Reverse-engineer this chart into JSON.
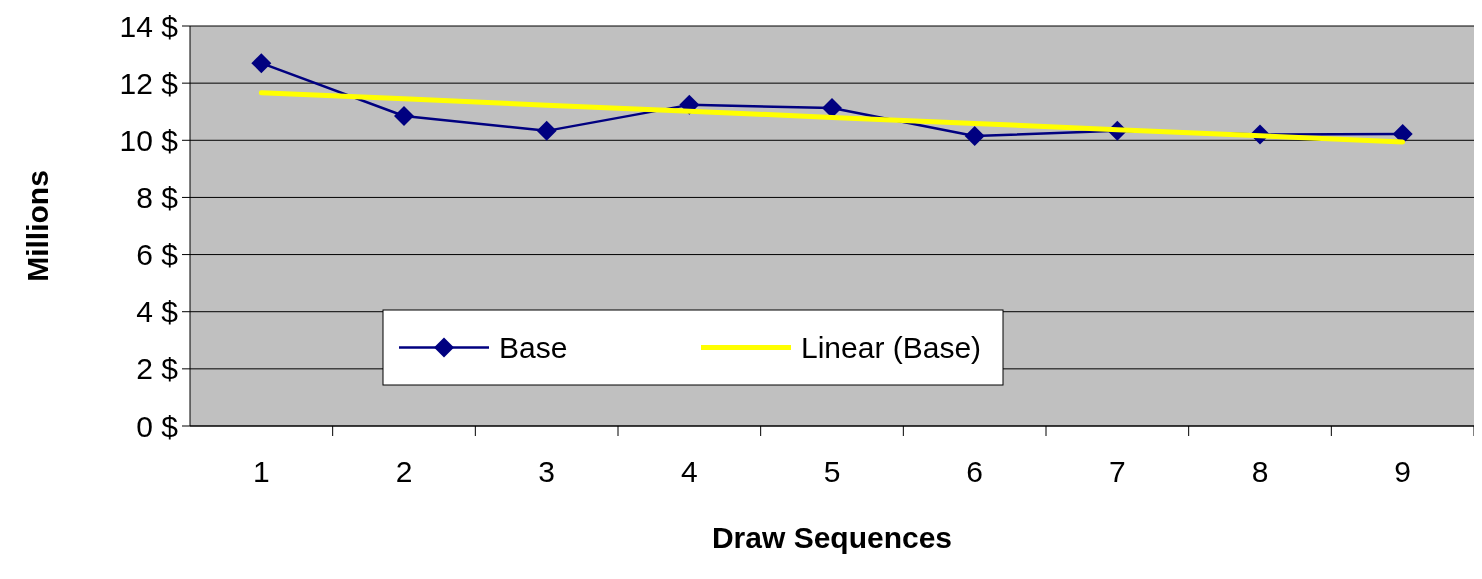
{
  "chart_data": {
    "type": "line",
    "xlabel": "Draw Sequences",
    "ylabel": "Millions",
    "categories": [
      "1",
      "2",
      "3",
      "4",
      "5",
      "6",
      "7",
      "8",
      "9"
    ],
    "series": [
      {
        "name": "Base",
        "color": "#000080",
        "marker": "diamond",
        "values": [
          12.7,
          10.85,
          10.33,
          11.24,
          11.13,
          10.15,
          10.33,
          10.2,
          10.22
        ]
      },
      {
        "name": "Linear (Base)",
        "color": "#ffff00",
        "marker": "none",
        "values": [
          11.66,
          11.45,
          11.23,
          11.02,
          10.8,
          10.59,
          10.37,
          10.16,
          9.94
        ]
      }
    ],
    "ylim": [
      0,
      14
    ],
    "yticks": [
      {
        "value": 0,
        "label": "0 $"
      },
      {
        "value": 2,
        "label": "2 $"
      },
      {
        "value": 4,
        "label": "4 $"
      },
      {
        "value": 6,
        "label": "6 $"
      },
      {
        "value": 8,
        "label": "8 $"
      },
      {
        "value": 10,
        "label": "10 $"
      },
      {
        "value": 12,
        "label": "12 $"
      },
      {
        "value": 14,
        "label": "14 $"
      }
    ],
    "grid": "y",
    "legend": "bottom left"
  }
}
